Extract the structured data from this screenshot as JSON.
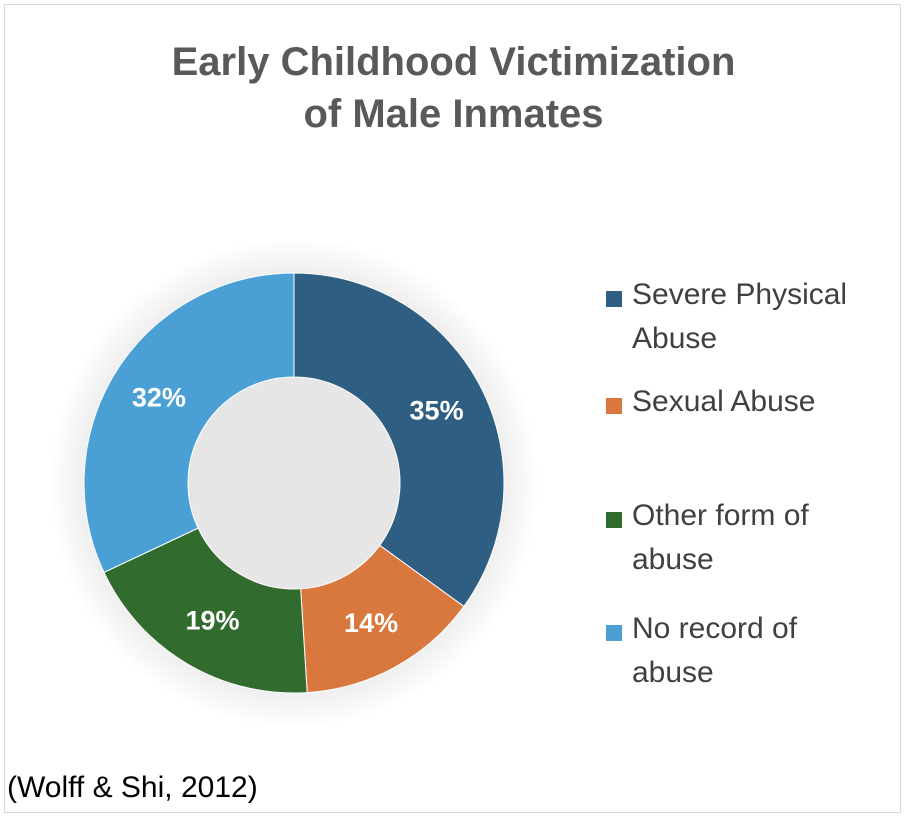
{
  "chart_data": {
    "type": "pie",
    "title": "Early Childhood Victimization of Male Inmates",
    "categories": [
      "Severe Physical Abuse",
      "Sexual Abuse",
      "Other form of abuse",
      "No record of abuse"
    ],
    "values": [
      35,
      14,
      19,
      32
    ],
    "data_labels": [
      "35%",
      "14%",
      "19%",
      "32%"
    ],
    "colors": [
      "#2e5f82",
      "#d9783e",
      "#316b2e",
      "#4aa0d5"
    ],
    "legend_position": "right",
    "donut": true
  },
  "title_lines": [
    "Early Childhood Victimization",
    "of Male Inmates"
  ],
  "legend": [
    {
      "lines": [
        "Severe Physical",
        "Abuse"
      ],
      "color": "#2e5f82"
    },
    {
      "lines": [
        "Sexual Abuse"
      ],
      "color": "#d9783e"
    },
    {
      "lines": [
        "Other form of",
        "abuse"
      ],
      "color": "#316b2e"
    },
    {
      "lines": [
        "No record of",
        "abuse"
      ],
      "color": "#4aa0d5"
    }
  ],
  "citation": "(Wolff & Shi, 2012)"
}
